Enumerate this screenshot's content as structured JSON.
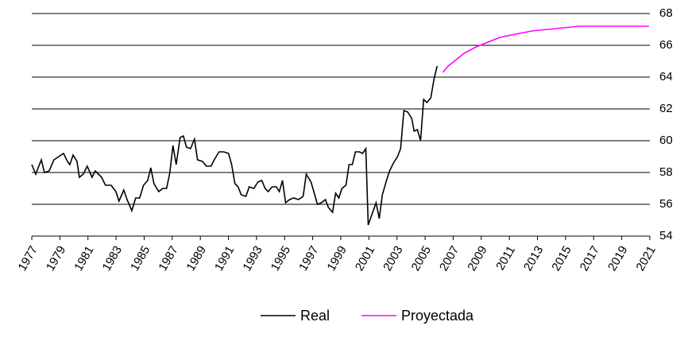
{
  "chart_data": {
    "type": "line",
    "series": [
      {
        "name": "Real",
        "color": "#000000",
        "x": [
          1977.0,
          1977.28,
          1977.68,
          1977.9,
          1978.24,
          1978.58,
          1978.92,
          1979.26,
          1979.54,
          1979.71,
          1979.94,
          1980.22,
          1980.39,
          1980.67,
          1980.95,
          1981.29,
          1981.52,
          1981.97,
          1982.25,
          1982.65,
          1982.99,
          1983.21,
          1983.55,
          1983.78,
          1984.12,
          1984.4,
          1984.68,
          1984.96,
          1985.25,
          1985.47,
          1985.7,
          1986.04,
          1986.32,
          1986.6,
          1986.83,
          1987.05,
          1987.28,
          1987.56,
          1987.79,
          1988.01,
          1988.3,
          1988.58,
          1988.8,
          1989.14,
          1989.43,
          1989.76,
          1989.99,
          1990.33,
          1990.67,
          1991.01,
          1991.23,
          1991.46,
          1991.69,
          1991.91,
          1992.25,
          1992.48,
          1992.81,
          1993.1,
          1993.38,
          1993.61,
          1993.83,
          1994.11,
          1994.4,
          1994.62,
          1994.85,
          1995.07,
          1995.36,
          1995.64,
          1995.98,
          1996.32,
          1996.54,
          1996.88,
          1997.11,
          1997.33,
          1997.62,
          1997.9,
          1998.12,
          1998.41,
          1998.63,
          1998.86,
          1999.08,
          1999.37,
          1999.59,
          1999.82,
          2000.04,
          2000.33,
          2000.55,
          2000.78,
          2000.95,
          2001.23,
          2001.51,
          2001.74,
          2001.96,
          2002.25,
          2002.47,
          2002.75,
          2003.04,
          2003.26,
          2003.49,
          2003.77,
          2004.05,
          2004.22,
          2004.45,
          2004.68,
          2004.9,
          2005.13,
          2005.41,
          2005.64,
          2005.86
        ],
        "values": [
          58.5,
          57.9,
          58.8,
          58.0,
          58.1,
          58.8,
          59.0,
          59.2,
          58.7,
          58.5,
          59.1,
          58.7,
          57.7,
          57.9,
          58.4,
          57.7,
          58.1,
          57.7,
          57.2,
          57.2,
          56.8,
          56.2,
          56.9,
          56.3,
          55.6,
          56.4,
          56.4,
          57.2,
          57.5,
          58.3,
          57.3,
          56.8,
          57.0,
          57.0,
          58.0,
          59.7,
          58.5,
          60.2,
          60.3,
          59.6,
          59.5,
          60.1,
          58.8,
          58.7,
          58.4,
          58.4,
          58.8,
          59.3,
          59.3,
          59.2,
          58.5,
          57.3,
          57.1,
          56.6,
          56.5,
          57.1,
          57.0,
          57.4,
          57.5,
          57.0,
          56.8,
          57.1,
          57.1,
          56.8,
          57.5,
          56.1,
          56.3,
          56.4,
          56.3,
          56.5,
          57.9,
          57.4,
          56.7,
          56.0,
          56.1,
          56.3,
          55.8,
          55.5,
          56.7,
          56.4,
          57.0,
          57.2,
          58.5,
          58.5,
          59.3,
          59.3,
          59.2,
          59.5,
          54.7,
          55.4,
          56.1,
          55.1,
          56.6,
          57.5,
          58.1,
          58.6,
          59.0,
          59.5,
          61.9,
          61.8,
          61.4,
          60.6,
          60.7,
          60.0,
          62.6,
          62.4,
          62.7,
          63.9,
          64.7
        ]
      },
      {
        "name": "Proyectada",
        "color": "#ff00ff",
        "x": [
          2006.26,
          2006.65,
          2007.22,
          2007.78,
          2008.63,
          2009.48,
          2010.32,
          2011.45,
          2012.58,
          2013.71,
          2014.84,
          2015.97,
          2017.67,
          2020.94
        ],
        "values": [
          64.3,
          64.7,
          65.1,
          65.5,
          65.9,
          66.2,
          66.5,
          66.7,
          66.9,
          67.0,
          67.1,
          67.2,
          67.2,
          67.2
        ]
      }
    ],
    "xlim": [
      1977,
      2021
    ],
    "xticks": [
      1977,
      1979,
      1981,
      1983,
      1985,
      1987,
      1989,
      1991,
      1993,
      1995,
      1997,
      1999,
      2001,
      2003,
      2005,
      2007,
      2009,
      2011,
      2013,
      2015,
      2017,
      2019,
      2021
    ],
    "ylim": [
      54,
      68
    ],
    "yticks": [
      54,
      56,
      58,
      60,
      62,
      64,
      66,
      68
    ],
    "grid": true,
    "legend": "bottom"
  }
}
